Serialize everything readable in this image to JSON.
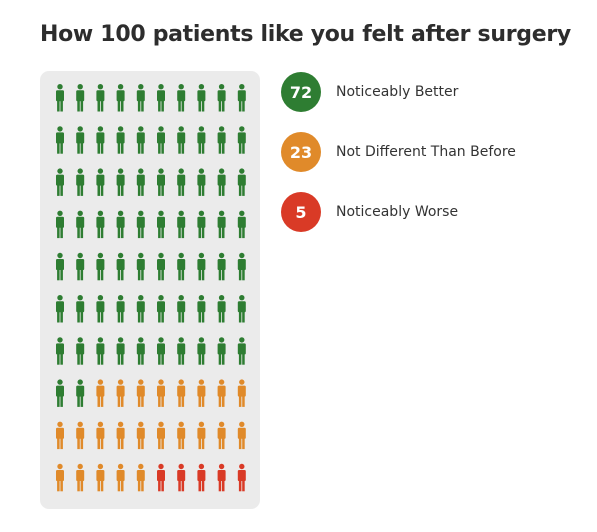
{
  "chart_data": {
    "type": "waffle",
    "title": "How 100 patients like you felt after surgery",
    "total": 100,
    "columns": 10,
    "rows": 10,
    "series": [
      {
        "name": "Noticeably Better",
        "value": 72,
        "color": "#2e7d32"
      },
      {
        "name": "Not Different Than Before",
        "value": 23,
        "color": "#e08a2a"
      },
      {
        "name": "Noticeably Worse",
        "value": 5,
        "color": "#d93a26"
      }
    ],
    "icon": "person-icon",
    "panel_color": "#ebebeb"
  }
}
